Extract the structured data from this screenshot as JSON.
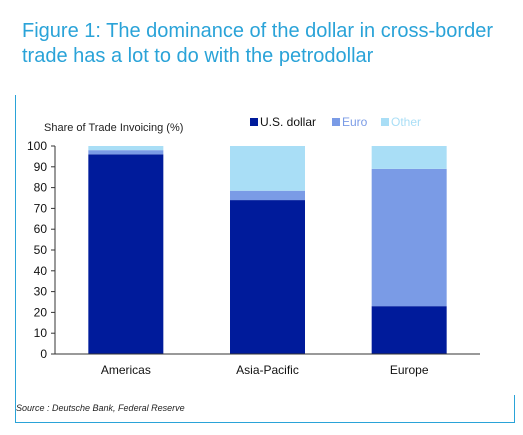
{
  "title": "Figure 1: The dominance of the dollar in cross-border trade has a lot to do with the petrodollar",
  "source": "Source : Deutsche Bank, Federal Reserve",
  "chart_data": {
    "type": "bar",
    "stacked": true,
    "ylabel": "Share of Trade Invoicing (%)",
    "ylim": [
      0,
      100
    ],
    "yticks": [
      0,
      10,
      20,
      30,
      40,
      50,
      60,
      70,
      80,
      90,
      100
    ],
    "categories": [
      "Americas",
      "Asia-Pacific",
      "Europe"
    ],
    "series": [
      {
        "name": "U.S. dollar",
        "color": "#001b9b",
        "values": [
          96,
          74,
          23
        ]
      },
      {
        "name": "Euro",
        "color": "#7a9be6",
        "values": [
          2,
          4.5,
          66
        ]
      },
      {
        "name": "Other",
        "color": "#a9def6",
        "values": [
          2,
          21.5,
          11
        ]
      }
    ],
    "legend_position": "top-center",
    "grid": false
  }
}
